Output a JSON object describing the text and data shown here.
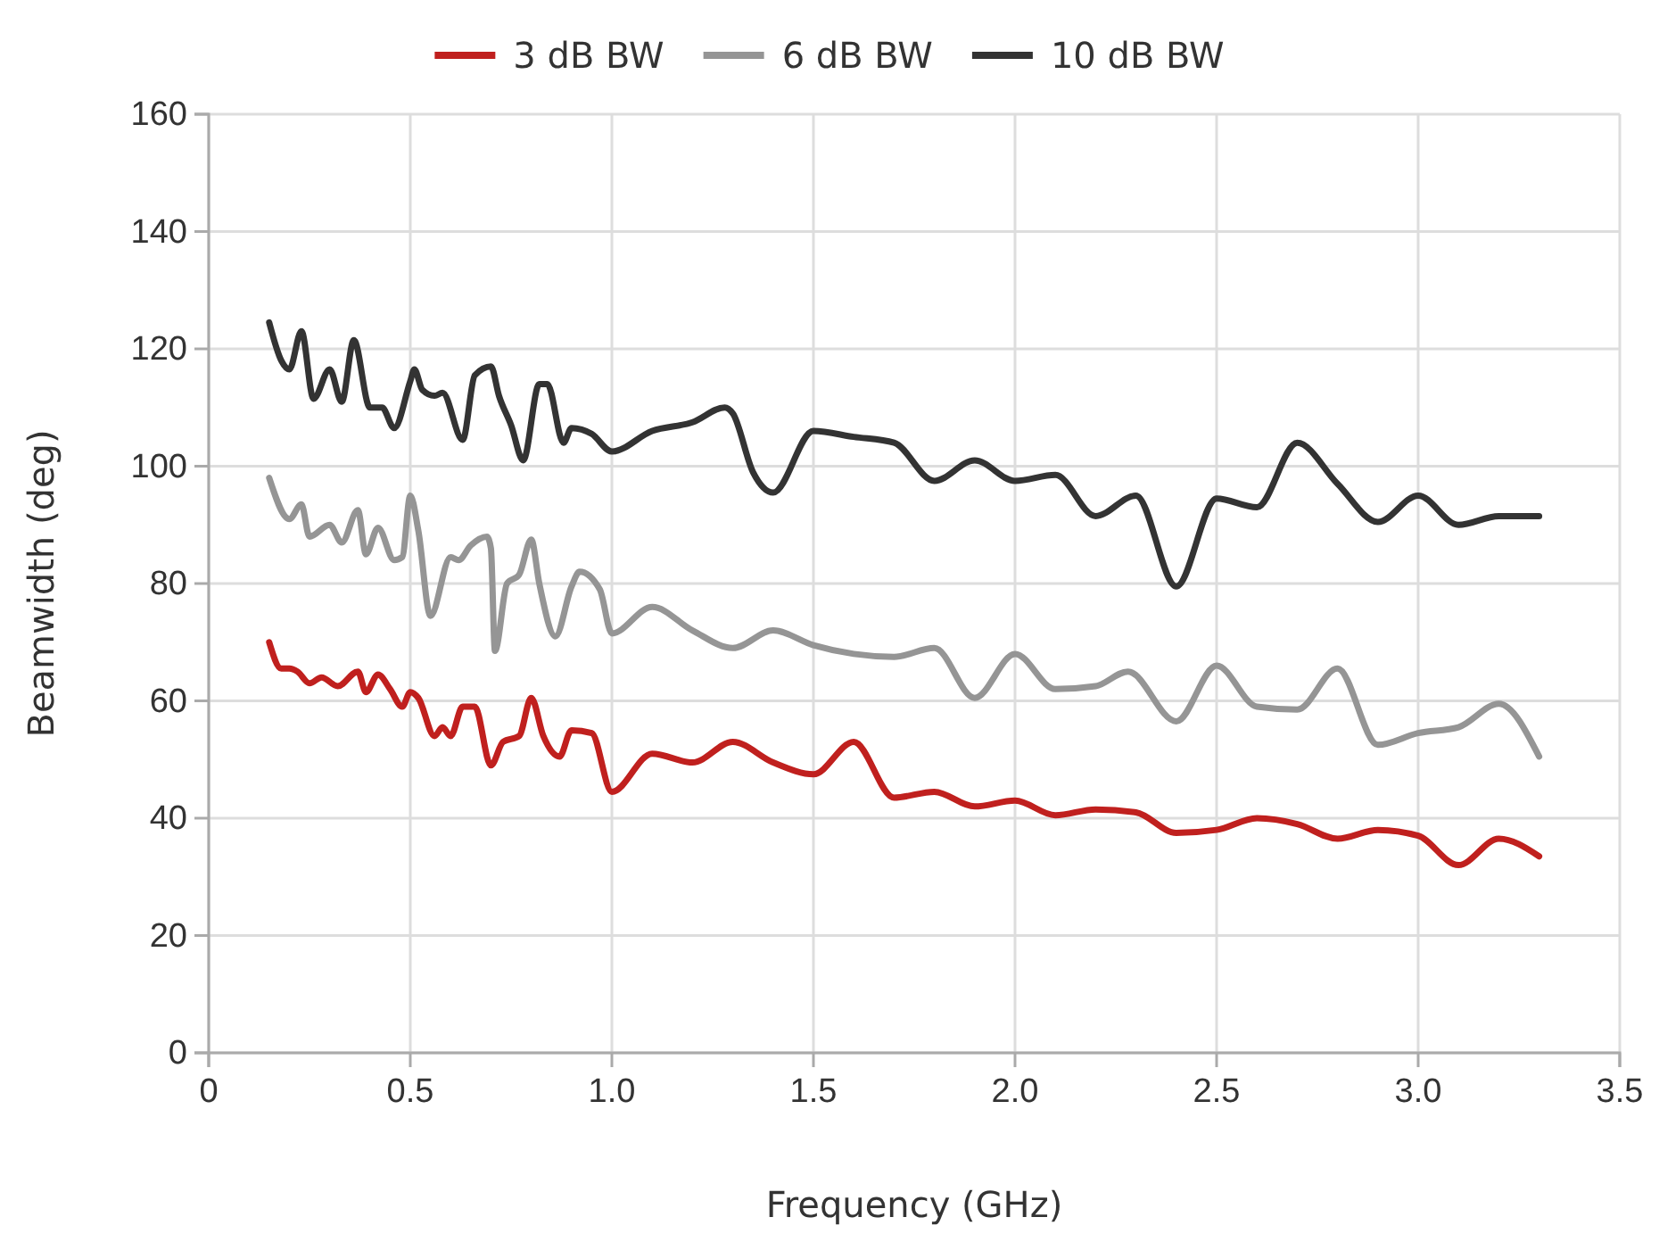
{
  "chart_data": {
    "type": "line",
    "xlabel": "Frequency (GHz)",
    "ylabel": "Beamwidth (deg)",
    "xlim": [
      0,
      3.5
    ],
    "ylim": [
      0,
      160
    ],
    "xticks": [
      0,
      0.5,
      {
        "value": 1,
        "label": "1.0"
      },
      1.5,
      {
        "value": 2,
        "label": "2.0"
      },
      2.5,
      {
        "value": 3,
        "label": "3.0"
      },
      3.5
    ],
    "yticks": [
      0,
      20,
      40,
      60,
      80,
      100,
      120,
      140,
      160
    ],
    "grid": true,
    "legend": "top",
    "marker": "none",
    "line_style": "solid",
    "series": [
      {
        "name": "3 dB BW",
        "color": "#c0201e",
        "x": [
          0.15,
          0.18,
          0.2,
          0.22,
          0.25,
          0.28,
          0.32,
          0.37,
          0.39,
          0.42,
          0.45,
          0.48,
          0.5,
          0.52,
          0.56,
          0.58,
          0.6,
          0.63,
          0.66,
          0.7,
          0.73,
          0.77,
          0.8,
          0.83,
          0.87,
          0.9,
          0.95,
          1.0,
          1.1,
          1.2,
          1.3,
          1.4,
          1.5,
          1.6,
          1.7,
          1.8,
          1.9,
          2.0,
          2.1,
          2.2,
          2.3,
          2.4,
          2.5,
          2.6,
          2.7,
          2.8,
          2.9,
          3.0,
          3.1,
          3.2,
          3.3
        ],
        "values": [
          70,
          65.5,
          65.5,
          65,
          63,
          64,
          62.5,
          65,
          61.5,
          64.5,
          62,
          59,
          61.5,
          60.5,
          54,
          55.5,
          54,
          59,
          59,
          49,
          53,
          54,
          60.5,
          54,
          50.5,
          55,
          54.5,
          44.5,
          51,
          49.5,
          53,
          49.5,
          47.5,
          53,
          43.5,
          44.5,
          42,
          43,
          40.5,
          41.5,
          41,
          37.5,
          38,
          40,
          39,
          36.5,
          38,
          37,
          32,
          36.5,
          33.5
        ]
      },
      {
        "name": "6 dB BW",
        "color": "#959595",
        "x": [
          0.15,
          0.2,
          0.23,
          0.25,
          0.3,
          0.33,
          0.37,
          0.39,
          0.42,
          0.46,
          0.48,
          0.5,
          0.52,
          0.55,
          0.6,
          0.62,
          0.65,
          0.69,
          0.7,
          0.71,
          0.74,
          0.77,
          0.8,
          0.82,
          0.86,
          0.9,
          0.92,
          0.97,
          1.0,
          1.1,
          1.2,
          1.3,
          1.4,
          1.5,
          1.6,
          1.7,
          1.8,
          1.9,
          2.0,
          2.1,
          2.2,
          2.28,
          2.4,
          2.5,
          2.6,
          2.7,
          2.8,
          2.9,
          3.0,
          3.1,
          3.2,
          3.3
        ],
        "values": [
          98,
          91,
          93.5,
          88,
          90,
          87,
          92.5,
          85,
          89.5,
          84,
          84.5,
          95,
          89,
          74.5,
          84.5,
          84,
          86.5,
          88,
          86,
          68.5,
          80,
          81.5,
          87.5,
          80,
          71,
          79.5,
          82,
          79,
          71.5,
          76,
          72,
          69,
          72,
          69.5,
          68,
          67.5,
          69,
          60.5,
          68,
          62,
          62.5,
          65,
          56.5,
          66,
          59,
          58.5,
          65.5,
          52.5,
          54.5,
          55.5,
          59.5,
          50.5
        ]
      },
      {
        "name": "10 dB BW",
        "color": "#333333",
        "x": [
          0.15,
          0.18,
          0.2,
          0.23,
          0.26,
          0.3,
          0.33,
          0.36,
          0.4,
          0.43,
          0.46,
          0.5,
          0.51,
          0.53,
          0.56,
          0.58,
          0.63,
          0.66,
          0.7,
          0.72,
          0.75,
          0.78,
          0.82,
          0.84,
          0.88,
          0.9,
          0.95,
          1.0,
          1.1,
          1.2,
          1.28,
          1.3,
          1.35,
          1.4,
          1.5,
          1.6,
          1.7,
          1.8,
          1.9,
          2.0,
          2.1,
          2.2,
          2.3,
          2.4,
          2.5,
          2.6,
          2.7,
          2.8,
          2.9,
          3.0,
          3.1,
          3.2,
          3.3
        ],
        "values": [
          124.5,
          118,
          116.5,
          123,
          111.5,
          116.5,
          111,
          121.5,
          110,
          110,
          106.5,
          114.5,
          116.5,
          113,
          112,
          112.5,
          104.5,
          115.5,
          117,
          112,
          107,
          101,
          114,
          114,
          104,
          106.5,
          105.5,
          102.5,
          106,
          107.5,
          110,
          109,
          99,
          95.5,
          106,
          105,
          104,
          97.5,
          101,
          97.5,
          98.5,
          91.5,
          95,
          79.5,
          94.5,
          93,
          104,
          97,
          90.5,
          95,
          90,
          91.5,
          91.5
        ]
      }
    ]
  }
}
